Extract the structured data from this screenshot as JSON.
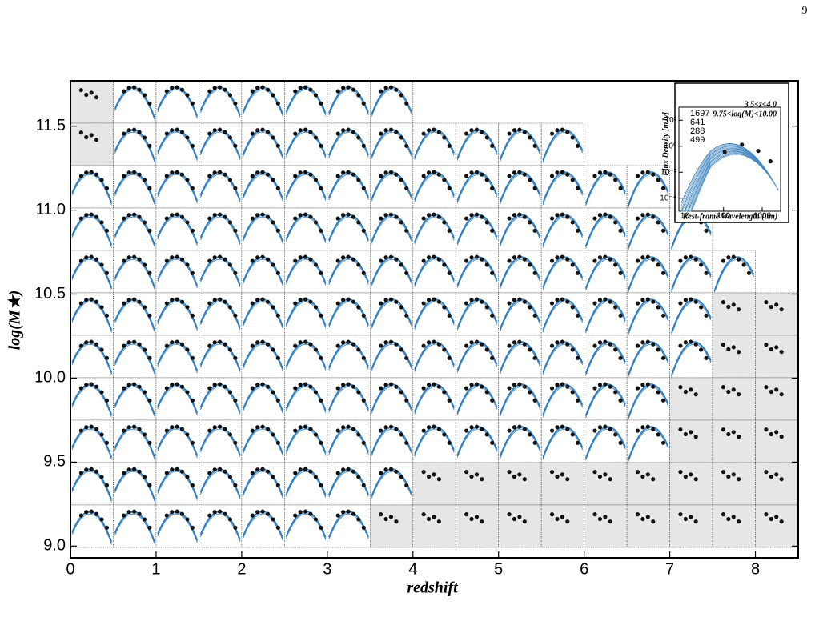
{
  "page_number": "9",
  "chart_data": [
    {
      "type": "panel-grid",
      "xlabel": "redshift",
      "ylabel": "log(M★)",
      "xlim": [
        0,
        8.5
      ],
      "ylim": [
        8.93,
        11.77
      ],
      "xticks": [
        0,
        1,
        2,
        3,
        4,
        5,
        6,
        7,
        8
      ],
      "yticks": [
        {
          "value": 9,
          "label": "9.0"
        },
        {
          "value": 9.5,
          "label": "9.5"
        },
        {
          "value": 10,
          "label": "10.0"
        },
        {
          "value": 10.5,
          "label": "10.5"
        },
        {
          "value": 11,
          "label": "11.0"
        },
        {
          "value": 11.5,
          "label": "11.5"
        }
      ]
    },
    {
      "type": "inset",
      "xlabel": "Rest-frame Wavelength (um)",
      "ylabel": "Flux Density [mJy]",
      "annotations": [
        "3.5<z<4.0",
        "9.75<log(M)<10.00"
      ],
      "counts": [
        1697,
        641,
        288,
        499
      ],
      "log_scale": true,
      "xlim": [
        7,
        3000
      ],
      "ylim": [
        1e-05,
        1000
      ],
      "xticks": [
        10,
        100,
        1000
      ],
      "yticks": [
        {
          "value": 100,
          "label": "10²"
        },
        {
          "value": 1,
          "label": "10⁰"
        },
        {
          "value": 0.01,
          "label": "10⁻²"
        },
        {
          "value": 0.0001,
          "label": "10⁻⁴"
        }
      ]
    }
  ]
}
